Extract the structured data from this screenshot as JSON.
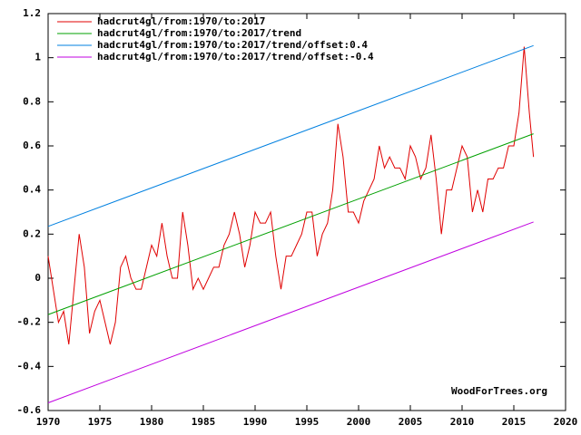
{
  "chart_data": {
    "type": "line",
    "watermark": "WoodForTrees.org",
    "xlim": [
      1970,
      2020
    ],
    "xticks": [
      1970,
      1975,
      1980,
      1985,
      1990,
      1995,
      2000,
      2005,
      2010,
      2015,
      2020
    ],
    "ylim": [
      -0.6,
      1.2
    ],
    "yticks": [
      -0.6,
      -0.4,
      -0.2,
      0,
      0.2,
      0.4,
      0.6,
      0.8,
      1,
      1.2
    ],
    "legend": "upper left",
    "series": [
      {
        "name": "hadcrut4gl/from:1970/to:2017",
        "color": "#e00000",
        "x": [
          1970.0,
          1970.5,
          1971.0,
          1971.5,
          1972.0,
          1972.5,
          1973.0,
          1973.5,
          1974.0,
          1974.5,
          1975.0,
          1975.5,
          1976.0,
          1976.5,
          1977.0,
          1977.5,
          1978.0,
          1978.5,
          1979.0,
          1979.5,
          1980.0,
          1980.5,
          1981.0,
          1981.5,
          1982.0,
          1982.5,
          1983.0,
          1983.5,
          1984.0,
          1984.5,
          1985.0,
          1985.5,
          1986.0,
          1986.5,
          1987.0,
          1987.5,
          1988.0,
          1988.5,
          1989.0,
          1989.5,
          1990.0,
          1990.5,
          1991.0,
          1991.5,
          1992.0,
          1992.5,
          1993.0,
          1993.5,
          1994.0,
          1994.5,
          1995.0,
          1995.5,
          1996.0,
          1996.5,
          1997.0,
          1997.5,
          1998.0,
          1998.5,
          1999.0,
          1999.5,
          2000.0,
          2000.5,
          2001.0,
          2001.5,
          2002.0,
          2002.5,
          2003.0,
          2003.5,
          2004.0,
          2004.5,
          2005.0,
          2005.5,
          2006.0,
          2006.5,
          2007.0,
          2007.5,
          2008.0,
          2008.5,
          2009.0,
          2009.5,
          2010.0,
          2010.5,
          2011.0,
          2011.5,
          2012.0,
          2012.5,
          2013.0,
          2013.5,
          2014.0,
          2014.5,
          2015.0,
          2015.5,
          2016.0,
          2016.5,
          2016.9
        ],
        "values": [
          0.1,
          -0.05,
          -0.2,
          -0.15,
          -0.3,
          -0.05,
          0.2,
          0.05,
          -0.25,
          -0.15,
          -0.1,
          -0.2,
          -0.3,
          -0.2,
          0.05,
          0.1,
          0.0,
          -0.05,
          -0.05,
          0.05,
          0.15,
          0.1,
          0.25,
          0.1,
          0.0,
          0.0,
          0.3,
          0.15,
          -0.05,
          0.0,
          -0.05,
          0.0,
          0.05,
          0.05,
          0.15,
          0.2,
          0.3,
          0.2,
          0.05,
          0.15,
          0.3,
          0.25,
          0.25,
          0.3,
          0.1,
          -0.05,
          0.1,
          0.1,
          0.15,
          0.2,
          0.3,
          0.3,
          0.1,
          0.2,
          0.25,
          0.4,
          0.7,
          0.55,
          0.3,
          0.3,
          0.25,
          0.35,
          0.4,
          0.45,
          0.6,
          0.5,
          0.55,
          0.5,
          0.5,
          0.45,
          0.6,
          0.55,
          0.45,
          0.5,
          0.65,
          0.45,
          0.2,
          0.4,
          0.4,
          0.5,
          0.6,
          0.55,
          0.3,
          0.4,
          0.3,
          0.45,
          0.45,
          0.5,
          0.5,
          0.6,
          0.6,
          0.75,
          1.05,
          0.75,
          0.55
        ]
      },
      {
        "name": "hadcrut4gl/from:1970/to:2017/trend",
        "color": "#00a000",
        "x": [
          1970,
          2016.9
        ],
        "values": [
          -0.165,
          0.655
        ]
      },
      {
        "name": "hadcrut4gl/from:1970/to:2017/trend/offset:0.4",
        "color": "#0080e0",
        "x": [
          1970,
          2016.9
        ],
        "values": [
          0.235,
          1.055
        ]
      },
      {
        "name": "hadcrut4gl/from:1970/to:2017/trend/offset:-0.4",
        "color": "#c000e0",
        "x": [
          1970,
          2016.9
        ],
        "values": [
          -0.565,
          0.255
        ]
      }
    ]
  }
}
